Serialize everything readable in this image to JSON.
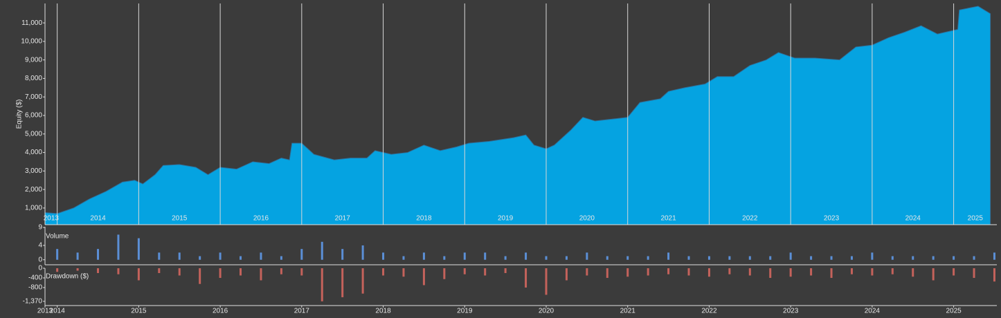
{
  "chart_data": [
    {
      "type": "area",
      "ylabel": "Equity ($)",
      "color": "#05a3e1",
      "xlim": [
        2013.85,
        2025.53
      ],
      "ylim": [
        100,
        12050
      ],
      "xticks": [
        2013,
        2014,
        2015,
        2016,
        2017,
        2018,
        2019,
        2020,
        2021,
        2022,
        2023,
        2024,
        2025
      ],
      "yticks": [
        {
          "value": 1000,
          "label": "1,000"
        },
        {
          "value": 2000,
          "label": "2,000"
        },
        {
          "value": 3000,
          "label": "3,000"
        },
        {
          "value": 4000,
          "label": "4,000"
        },
        {
          "value": 5000,
          "label": "5,000"
        },
        {
          "value": 6000,
          "label": "6,000"
        },
        {
          "value": 7000,
          "label": "7,000"
        },
        {
          "value": 8000,
          "label": "8,000"
        },
        {
          "value": 9000,
          "label": "9,000"
        },
        {
          "value": 10000,
          "label": "10,000"
        },
        {
          "value": 11000,
          "label": "11,000"
        }
      ],
      "grid": true,
      "x": [
        2013.85,
        2014.0,
        2014.2,
        2014.4,
        2014.6,
        2014.8,
        2014.95,
        2015.05,
        2015.2,
        2015.3,
        2015.5,
        2015.7,
        2015.85,
        2016.0,
        2016.2,
        2016.4,
        2016.6,
        2016.75,
        2016.85,
        2016.88,
        2017.0,
        2017.15,
        2017.4,
        2017.6,
        2017.8,
        2017.9,
        2018.1,
        2018.3,
        2018.5,
        2018.7,
        2018.9,
        2019.05,
        2019.3,
        2019.6,
        2019.75,
        2019.85,
        2020.0,
        2020.1,
        2020.3,
        2020.45,
        2020.6,
        2020.8,
        2021.0,
        2021.15,
        2021.4,
        2021.5,
        2021.7,
        2021.95,
        2022.1,
        2022.3,
        2022.5,
        2022.7,
        2022.85,
        2023.05,
        2023.3,
        2023.6,
        2023.8,
        2024.0,
        2024.2,
        2024.4,
        2024.6,
        2024.8,
        2025.0,
        2025.05,
        2025.07,
        2025.3,
        2025.45
      ],
      "values": [
        750,
        700,
        1000,
        1500,
        1900,
        2400,
        2500,
        2300,
        2800,
        3300,
        3350,
        3200,
        2800,
        3200,
        3100,
        3500,
        3400,
        3700,
        3600,
        4500,
        4500,
        3900,
        3600,
        3700,
        3700,
        4100,
        3900,
        4000,
        4400,
        4100,
        4300,
        4500,
        4600,
        4800,
        4950,
        4400,
        4200,
        4400,
        5200,
        5900,
        5700,
        5800,
        5900,
        6700,
        6900,
        7300,
        7500,
        7700,
        8100,
        8100,
        8700,
        9000,
        9400,
        9100,
        9100,
        9000,
        9700,
        9800,
        10200,
        10500,
        10850,
        10400,
        10600,
        10650,
        11700,
        11900,
        11500
      ]
    },
    {
      "type": "bar",
      "title": "Volume",
      "color": "#5b8fd6",
      "xlim": [
        2013.85,
        2025.53
      ],
      "ylim": [
        -1.4,
        9.2
      ],
      "yticks": [
        0,
        4,
        9
      ],
      "x": [
        2014.0,
        2014.25,
        2014.5,
        2014.75,
        2015.0,
        2015.25,
        2015.5,
        2015.75,
        2016.0,
        2016.25,
        2016.5,
        2016.75,
        2017.0,
        2017.25,
        2017.5,
        2017.75,
        2018.0,
        2018.25,
        2018.5,
        2018.75,
        2019.0,
        2019.25,
        2019.5,
        2019.75,
        2020.0,
        2020.25,
        2020.5,
        2020.75,
        2021.0,
        2021.25,
        2021.5,
        2021.75,
        2022.0,
        2022.25,
        2022.5,
        2022.75,
        2023.0,
        2023.25,
        2023.5,
        2023.75,
        2024.0,
        2024.25,
        2024.5,
        2024.75,
        2025.0,
        2025.25,
        2025.5
      ],
      "values": [
        3,
        2,
        3,
        7,
        6,
        2,
        2,
        1,
        2,
        1,
        2,
        1,
        3,
        5,
        3,
        4,
        2,
        1,
        2,
        1,
        2,
        2,
        1,
        2,
        1,
        1,
        2,
        1,
        1,
        1,
        2,
        1,
        1,
        1,
        1,
        1,
        2,
        1,
        1,
        1,
        2,
        1,
        1,
        1,
        1,
        1,
        2
      ]
    },
    {
      "type": "bar",
      "title": "Drawdown ($)",
      "color": "#c4625b",
      "xlim": [
        2013.85,
        2025.53
      ],
      "ylim": [
        -1545,
        0
      ],
      "yticks": [
        0,
        -400,
        -800,
        {
          "value": -1370,
          "label": "-1,370"
        }
      ],
      "xticks": [
        {
          "value": 2013.85,
          "label": "2013"
        },
        2014,
        2015,
        2016,
        2017,
        2018,
        2019,
        2020,
        2021,
        2022,
        2023,
        2024,
        2025
      ],
      "x": [
        2014.0,
        2014.25,
        2014.5,
        2014.75,
        2015.0,
        2015.25,
        2015.5,
        2015.75,
        2016.0,
        2016.25,
        2016.5,
        2016.75,
        2017.0,
        2017.25,
        2017.5,
        2017.75,
        2018.0,
        2018.25,
        2018.5,
        2018.75,
        2019.0,
        2019.25,
        2019.5,
        2019.75,
        2020.0,
        2020.25,
        2020.5,
        2020.75,
        2021.0,
        2021.25,
        2021.5,
        2021.75,
        2022.0,
        2022.25,
        2022.5,
        2022.75,
        2023.0,
        2023.25,
        2023.5,
        2023.75,
        2024.0,
        2024.25,
        2024.5,
        2024.75,
        2025.0,
        2025.25,
        2025.5
      ],
      "values": [
        -150,
        -100,
        -200,
        -250,
        -500,
        -200,
        -300,
        -650,
        -400,
        -300,
        -500,
        -250,
        -300,
        -1370,
        -1200,
        -1050,
        -300,
        -350,
        -700,
        -450,
        -250,
        -300,
        -200,
        -800,
        -1100,
        -500,
        -300,
        -400,
        -350,
        -300,
        -250,
        -300,
        -350,
        -250,
        -300,
        -400,
        -350,
        -300,
        -400,
        -250,
        -300,
        -250,
        -350,
        -500,
        -300,
        -400,
        -550
      ]
    }
  ]
}
